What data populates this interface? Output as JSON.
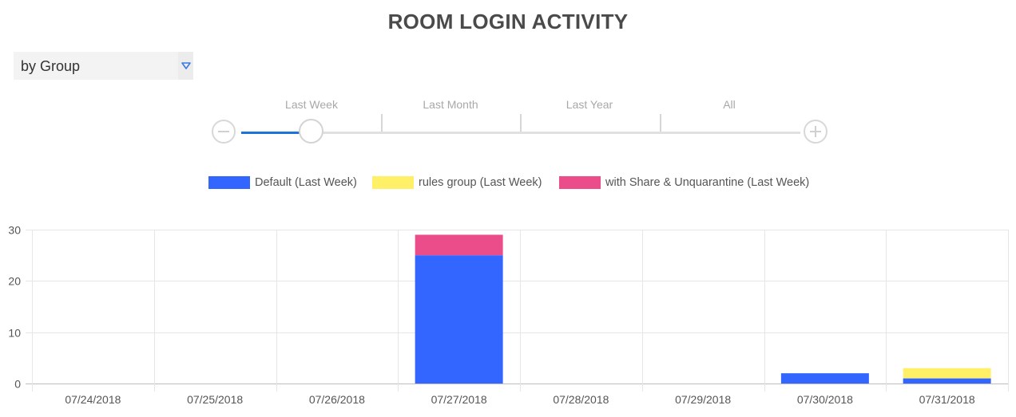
{
  "title": "ROOM LOGIN ACTIVITY",
  "group_select": {
    "value": "by Group"
  },
  "timeline": {
    "labels": [
      "Last Week",
      "Last Month",
      "Last Year",
      "All"
    ],
    "selected": "Last Week"
  },
  "chart_data": {
    "type": "bar",
    "stacked": true,
    "categories": [
      "07/24/2018",
      "07/25/2018",
      "07/26/2018",
      "07/27/2018",
      "07/28/2018",
      "07/29/2018",
      "07/30/2018",
      "07/31/2018"
    ],
    "series": [
      {
        "name": "Default (Last Week)",
        "color": "#3366ff",
        "values": [
          0,
          0,
          0,
          25,
          0,
          0,
          2,
          1
        ]
      },
      {
        "name": "rules group (Last Week)",
        "color": "#fff068",
        "values": [
          0,
          0,
          0,
          0,
          0,
          0,
          0,
          2
        ]
      },
      {
        "name": "with Share & Unquarantine (Last Week)",
        "color": "#ea4d8a",
        "values": [
          0,
          0,
          0,
          4,
          0,
          0,
          0,
          0
        ]
      }
    ],
    "ylim": [
      0,
      30
    ],
    "yticks": [
      0,
      10,
      20,
      30
    ],
    "legend_position": "top",
    "grid": true
  }
}
